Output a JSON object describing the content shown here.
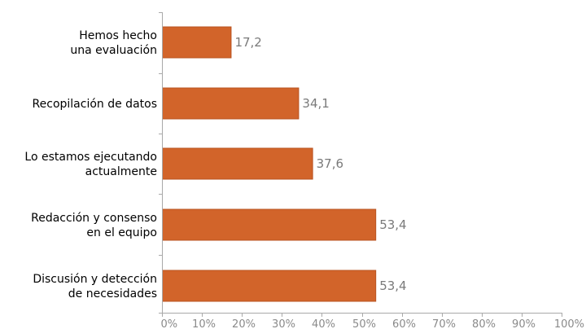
{
  "chart_data": {
    "type": "bar",
    "orientation": "horizontal",
    "categories": [
      [
        "Hemos hecho",
        "una evaluación"
      ],
      [
        "Recopilación de datos"
      ],
      [
        "Lo estamos ejecutando",
        "actualmente"
      ],
      [
        "Redacción y consenso",
        "en el equipo"
      ],
      [
        "Discusión y detección",
        "de necesidades"
      ]
    ],
    "values": [
      17.2,
      34.1,
      37.6,
      53.4,
      53.4
    ],
    "value_labels": [
      "17,2",
      "34,1",
      "37,6",
      "53,4",
      "53,4"
    ],
    "xlim": [
      0,
      100
    ],
    "x_ticks": [
      0,
      10,
      20,
      30,
      40,
      50,
      60,
      70,
      80,
      90,
      100
    ],
    "x_tick_labels": [
      "0%",
      "10%",
      "20%",
      "30%",
      "40%",
      "50%",
      "60%",
      "70%",
      "80%",
      "90%",
      "100%"
    ],
    "bar_color": "#d2642a",
    "bar_border_color": "#b85320",
    "grid": false,
    "legend": "none"
  }
}
